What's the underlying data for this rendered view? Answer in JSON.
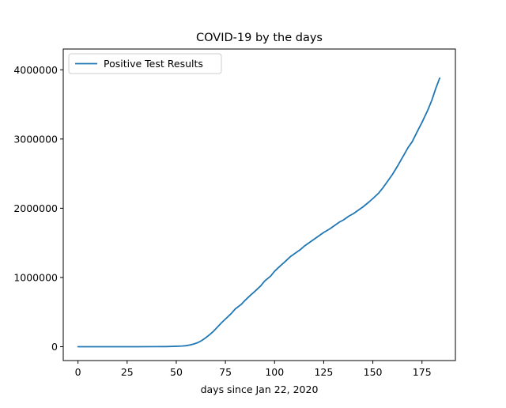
{
  "chart_data": {
    "type": "line",
    "title": "COVID-19 by the days",
    "xlabel": "days since Jan 22, 2020",
    "ylabel": "",
    "xlim": [
      -7.5,
      192.0
    ],
    "ylim": [
      -200000,
      4300000
    ],
    "x_ticks": [
      0,
      25,
      50,
      75,
      100,
      125,
      150,
      175
    ],
    "y_ticks": [
      0,
      1000000,
      2000000,
      3000000,
      4000000
    ],
    "grid": false,
    "legend": {
      "position": "top-left"
    },
    "series": [
      {
        "name": "Positive Test Results",
        "color": "#1f77b4",
        "x": [
          0,
          10,
          20,
          30,
          40,
          45,
          50,
          53,
          55,
          57,
          59,
          61,
          63,
          65,
          67,
          69,
          71,
          73,
          75,
          78,
          80,
          83,
          85,
          88,
          90,
          93,
          95,
          98,
          100,
          103,
          105,
          108,
          110,
          113,
          115,
          118,
          120,
          123,
          125,
          128,
          130,
          133,
          135,
          138,
          140,
          143,
          145,
          148,
          150,
          153,
          155,
          158,
          160,
          163,
          165,
          168,
          170,
          173,
          175,
          178,
          180,
          182,
          184
        ],
        "values": [
          0,
          0,
          0,
          100,
          1000,
          2000,
          6000,
          10000,
          15000,
          25000,
          40000,
          60000,
          90000,
          130000,
          175000,
          225000,
          285000,
          345000,
          400000,
          480000,
          545000,
          610000,
          670000,
          750000,
          800000,
          880000,
          950000,
          1020000,
          1090000,
          1170000,
          1220000,
          1300000,
          1340000,
          1400000,
          1450000,
          1510000,
          1550000,
          1610000,
          1650000,
          1700000,
          1740000,
          1800000,
          1830000,
          1890000,
          1920000,
          1980000,
          2020000,
          2090000,
          2140000,
          2220000,
          2290000,
          2410000,
          2490000,
          2630000,
          2730000,
          2880000,
          2960000,
          3130000,
          3240000,
          3420000,
          3560000,
          3730000,
          3880000
        ]
      }
    ]
  }
}
